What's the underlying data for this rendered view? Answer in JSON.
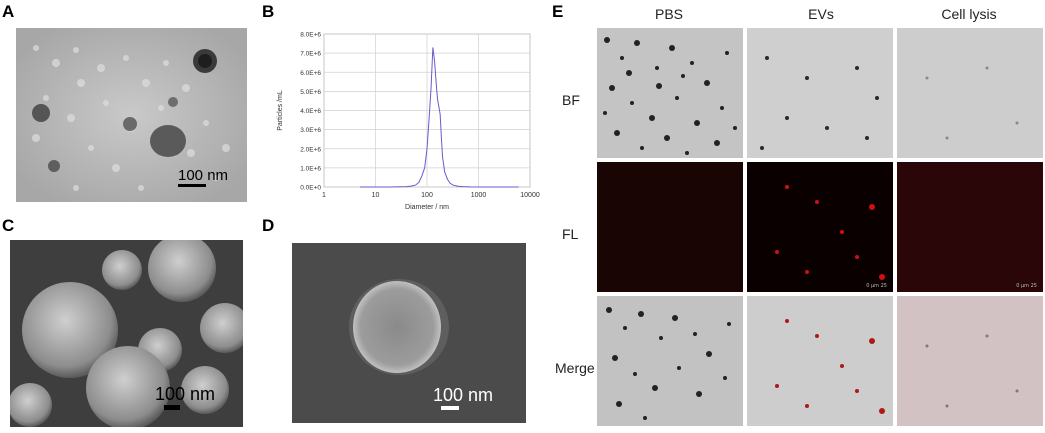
{
  "panels": {
    "A": {
      "label": "A",
      "scale": "100 nm"
    },
    "B": {
      "label": "B"
    },
    "C": {
      "label": "C",
      "scale": "100 nm"
    },
    "D": {
      "label": "D",
      "scale": "100 nm"
    },
    "E": {
      "label": "E",
      "columns": [
        "PBS",
        "EVs",
        "Cell lysis"
      ],
      "rows": [
        "BF",
        "FL",
        "Merge"
      ],
      "tile_scale": "0  μm  25"
    }
  },
  "chart_data": {
    "type": "line",
    "title": "",
    "xlabel": "Diameter / nm",
    "ylabel": "Particles /mL",
    "xscale": "log",
    "xlim": [
      1,
      10000
    ],
    "ylim": [
      0,
      8000000
    ],
    "xticks": [
      "1",
      "10",
      "100",
      "1000",
      "10000"
    ],
    "yticks": [
      "0.0E+0",
      "1.0E+6",
      "2.0E+6",
      "3.0E+6",
      "4.0E+6",
      "5.0E+6",
      "6.0E+6",
      "7.0E+6",
      "8.0E+6"
    ],
    "grid": true,
    "line_color": "#6a5acd",
    "series": [
      {
        "x": [
          5,
          10,
          20,
          30,
          40,
          50,
          60,
          70,
          80,
          90,
          100,
          110,
          120,
          130,
          140,
          150,
          160,
          170,
          180,
          190,
          200,
          220,
          250,
          280,
          320,
          400,
          500,
          700,
          1000,
          2000,
          6000
        ],
        "y": [
          0,
          0,
          0,
          10000,
          20000,
          50000,
          100000,
          250000,
          600000,
          1000000,
          2000000,
          3600000,
          5200000,
          7300000,
          6600000,
          5500000,
          4600000,
          4200000,
          3800000,
          2600000,
          1600000,
          800000,
          400000,
          200000,
          100000,
          40000,
          20000,
          5000,
          0,
          0,
          0
        ]
      }
    ]
  }
}
